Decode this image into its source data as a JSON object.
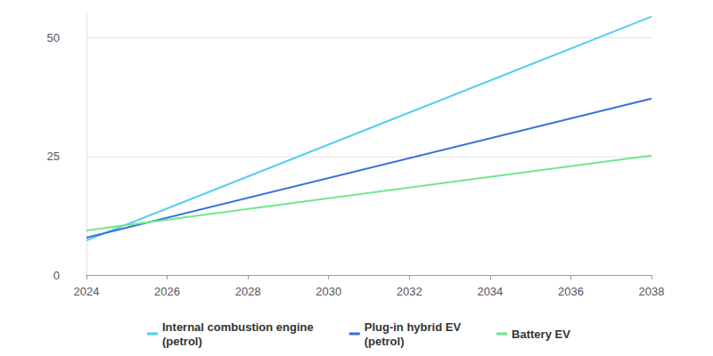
{
  "chart_data": {
    "type": "line",
    "x": [
      2024,
      2038
    ],
    "xlim": [
      2024,
      2038
    ],
    "xticks": [
      2024,
      2026,
      2028,
      2030,
      2032,
      2034,
      2036,
      2038
    ],
    "ylim": [
      0,
      55
    ],
    "yticks": [
      0,
      25,
      50
    ],
    "grid": true,
    "legend": "bottom",
    "series": [
      {
        "name": "Internal combustion engine\n(petrol)",
        "color": "#4fd0ee",
        "values": [
          7.3,
          54.5
        ]
      },
      {
        "name": "Plug-in hybrid EV\n(petrol)",
        "color": "#3a6fd8",
        "values": [
          7.9,
          37.2
        ]
      },
      {
        "name": "Battery EV",
        "color": "#6ee88a",
        "values": [
          9.4,
          25.2
        ]
      }
    ]
  }
}
